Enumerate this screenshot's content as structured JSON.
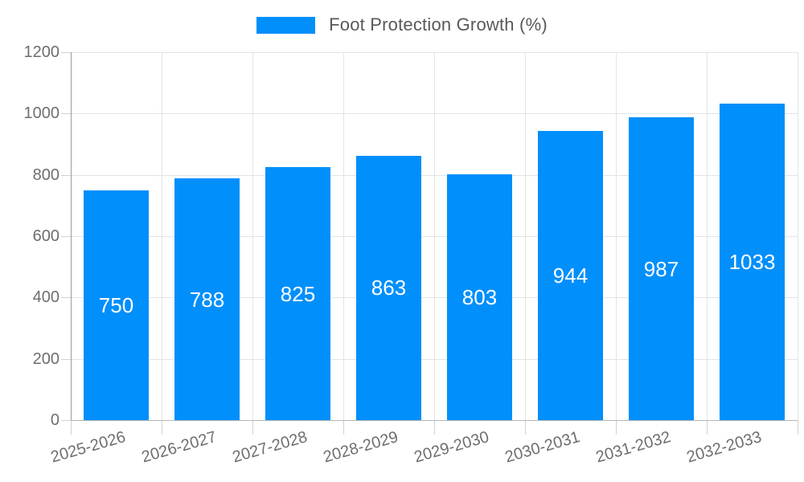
{
  "legend": {
    "label": "Foot Protection Growth (%)"
  },
  "chart_data": {
    "type": "bar",
    "title": "Foot Protection Growth (%)",
    "categories": [
      "2025-2026",
      "2026-2027",
      "2027-2028",
      "2028-2029",
      "2029-2030",
      "2030-2031",
      "2031-2032",
      "2032-2033"
    ],
    "series": [
      {
        "name": "Foot Protection Growth (%)",
        "values": [
          750,
          788,
          825,
          863,
          803,
          944,
          987,
          1033
        ]
      }
    ],
    "data_labels": [
      "750",
      "788",
      "825",
      "863",
      "803",
      "944",
      "987",
      "1033"
    ],
    "ylabel": "",
    "xlabel": "",
    "ylim": [
      0,
      1200
    ],
    "ytick_step": 200,
    "ytick_labels": [
      "0",
      "200",
      "400",
      "600",
      "800",
      "1000",
      "1200"
    ],
    "grid": "on",
    "legend_position": "top",
    "colors": {
      "bar": "#008FFB",
      "bar_label": "#ffffff",
      "axis_text": "#6e6e6e",
      "legend_text": "#58595b",
      "gridline": "#e4e4e4"
    }
  }
}
